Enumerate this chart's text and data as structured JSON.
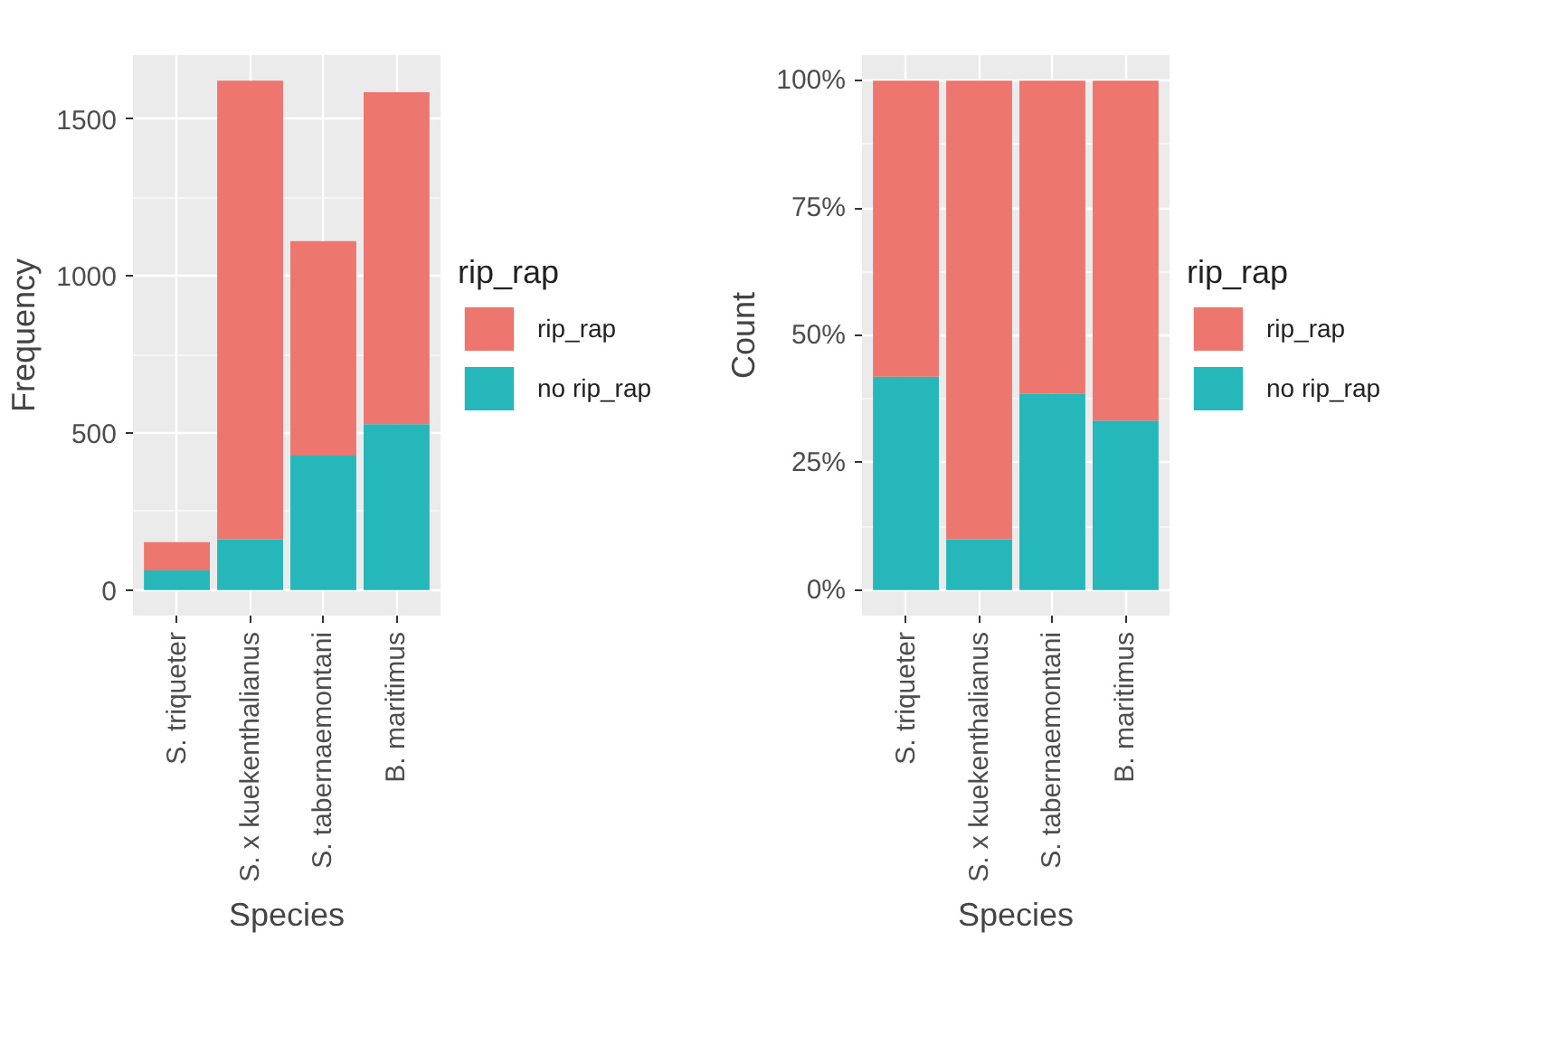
{
  "chart_data": [
    {
      "type": "bar",
      "stacked": true,
      "xlabel": "Species",
      "ylabel": "Frequency",
      "legend_title": "rip_rap",
      "legend": "right",
      "grid": true,
      "categories": [
        "S. triqueter",
        "S. x kuekenthalianus",
        "S. tabernaemontani",
        "B. maritimus"
      ],
      "series": [
        {
          "name": "no rip_rap",
          "color": "#26b7ba",
          "values": [
            63,
            162,
            428,
            528
          ]
        },
        {
          "name": "rip_rap",
          "color": "#ed766e",
          "values": [
            90,
            1460,
            683,
            1057
          ]
        }
      ],
      "ylim": [
        -81,
        1703
      ],
      "yticks": [
        0,
        500,
        1000,
        1500
      ]
    },
    {
      "type": "bar",
      "stacked": true,
      "xlabel": "Species",
      "ylabel": "Count",
      "legend_title": "rip_rap",
      "legend": "right",
      "grid": true,
      "categories": [
        "S. triqueter",
        "S. x kuekenthalianus",
        "S. tabernaemontani",
        "B. maritimus"
      ],
      "series": [
        {
          "name": "no rip_rap",
          "color": "#26b7ba",
          "values": [
            41.9,
            10.0,
            38.5,
            33.3
          ]
        },
        {
          "name": "rip_rap",
          "color": "#ed766e",
          "values": [
            58.1,
            90.0,
            61.5,
            66.7
          ]
        }
      ],
      "ylim": [
        -5,
        105
      ],
      "yticks": [
        {
          "value": 0,
          "label": "0%"
        },
        {
          "value": 25,
          "label": "25%"
        },
        {
          "value": 50,
          "label": "50%"
        },
        {
          "value": 75,
          "label": "75%"
        },
        {
          "value": 100,
          "label": "100%"
        }
      ]
    }
  ]
}
